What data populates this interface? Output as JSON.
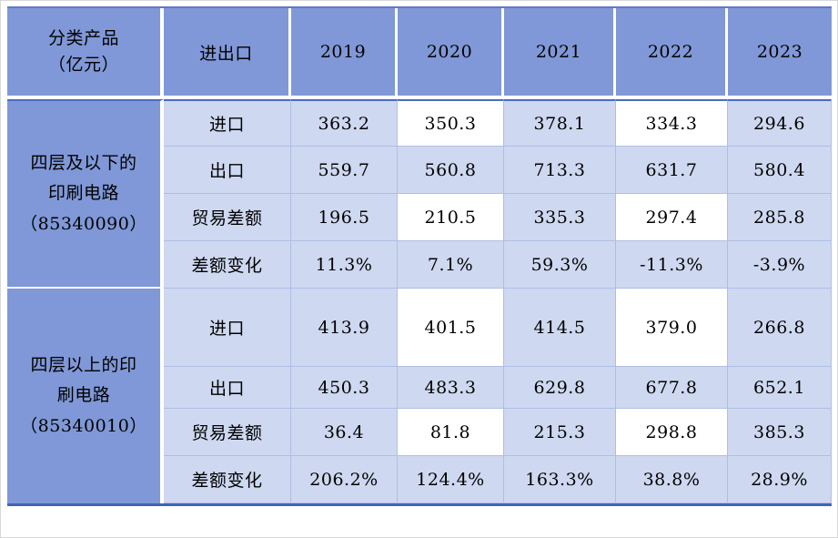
{
  "table": {
    "header": {
      "product_label": "分类产品\n（亿元）",
      "flow_label": "进出口",
      "years": [
        "2019",
        "2020",
        "2021",
        "2022",
        "2023"
      ]
    },
    "groups": [
      {
        "label": "四层及以下的\n印刷电路\n（85340090）",
        "rows": [
          {
            "label": "进口",
            "values": [
              "363.2",
              "350.3",
              "378.1",
              "334.3",
              "294.6"
            ]
          },
          {
            "label": "出口",
            "values": [
              "559.7",
              "560.8",
              "713.3",
              "631.7",
              "580.4"
            ]
          },
          {
            "label": "贸易差额",
            "values": [
              "196.5",
              "210.5",
              "335.3",
              "297.4",
              "285.8"
            ]
          },
          {
            "label": "差额变化",
            "values": [
              "11.3%",
              "7.1%",
              "59.3%",
              "-11.3%",
              "-3.9%"
            ]
          }
        ]
      },
      {
        "label": "四层以上的印\n刷电路\n（85340010）",
        "rows": [
          {
            "label": "进口",
            "values": [
              "413.9",
              "401.5",
              "414.5",
              "379.0",
              "266.8"
            ]
          },
          {
            "label": "出口",
            "values": [
              "450.3",
              "483.3",
              "629.8",
              "677.8",
              "652.1"
            ]
          },
          {
            "label": "贸易差额",
            "values": [
              "36.4",
              "81.8",
              "215.3",
              "298.8",
              "385.3"
            ]
          },
          {
            "label": "差额变化",
            "values": [
              "206.2%",
              "124.4%",
              "163.3%",
              "38.8%",
              "28.9%"
            ]
          }
        ]
      }
    ],
    "colors": {
      "accent": "#8098d7",
      "cell_light": "#ced8f0",
      "cell_white": "#ffffff",
      "gridline": "#afbee3",
      "dark_border": "#3f63bd",
      "text": "#000000"
    }
  },
  "chart_data": {
    "type": "table",
    "columns": [
      "分类产品（亿元）",
      "进出口",
      "2019",
      "2020",
      "2021",
      "2022",
      "2023"
    ],
    "rows": [
      [
        "四层及以下的印刷电路（85340090）",
        "进口",
        363.2,
        350.3,
        378.1,
        334.3,
        294.6
      ],
      [
        "四层及以下的印刷电路（85340090）",
        "出口",
        559.7,
        560.8,
        713.3,
        631.7,
        580.4
      ],
      [
        "四层及以下的印刷电路（85340090）",
        "贸易差额",
        196.5,
        210.5,
        335.3,
        297.4,
        285.8
      ],
      [
        "四层及以下的印刷电路（85340090）",
        "差额变化",
        "11.3%",
        "7.1%",
        "59.3%",
        "-11.3%",
        "-3.9%"
      ],
      [
        "四层以上的印刷电路（85340010）",
        "进口",
        413.9,
        401.5,
        414.5,
        379.0,
        266.8
      ],
      [
        "四层以上的印刷电路（85340010）",
        "出口",
        450.3,
        483.3,
        629.8,
        677.8,
        652.1
      ],
      [
        "四层以上的印刷电路（85340010）",
        "贸易差额",
        36.4,
        81.8,
        215.3,
        298.8,
        385.3
      ],
      [
        "四层以上的印刷电路（85340010）",
        "差额变化",
        "206.2%",
        "124.4%",
        "163.3%",
        "38.8%",
        "28.9%"
      ]
    ],
    "units": "亿元",
    "highlighted_white_cells": "rows 进口/贸易差额 at columns 2020 and 2022"
  }
}
